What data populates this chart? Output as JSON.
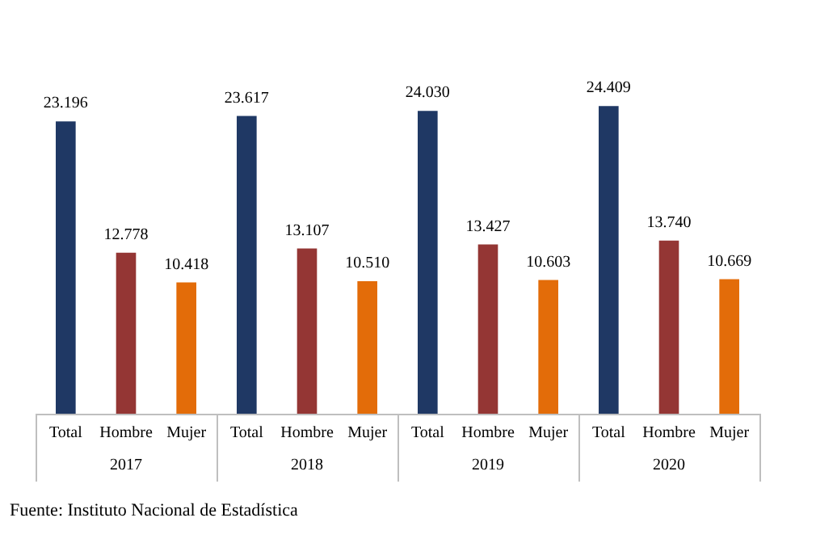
{
  "chart_data": {
    "type": "bar",
    "categories": [
      "2017",
      "2018",
      "2019",
      "2020"
    ],
    "series": [
      {
        "name": "Total",
        "color": "#1f3864",
        "values": [
          23196,
          23617,
          24030,
          24409
        ],
        "value_labels": [
          "23.196",
          "23.617",
          "24.030",
          "24.409"
        ]
      },
      {
        "name": "Hombre",
        "color": "#943634",
        "values": [
          12778,
          13107,
          13427,
          13740
        ],
        "value_labels": [
          "12.778",
          "13.107",
          "13.427",
          "13.740"
        ]
      },
      {
        "name": "Mujer",
        "color": "#e36c09",
        "values": [
          10418,
          10510,
          10603,
          10669
        ],
        "value_labels": [
          "10.418",
          "10.510",
          "10.603",
          "10.669"
        ]
      }
    ],
    "annotations": [
      "Fuente: Instituto Nacional de Estadística"
    ],
    "legend": false
  }
}
